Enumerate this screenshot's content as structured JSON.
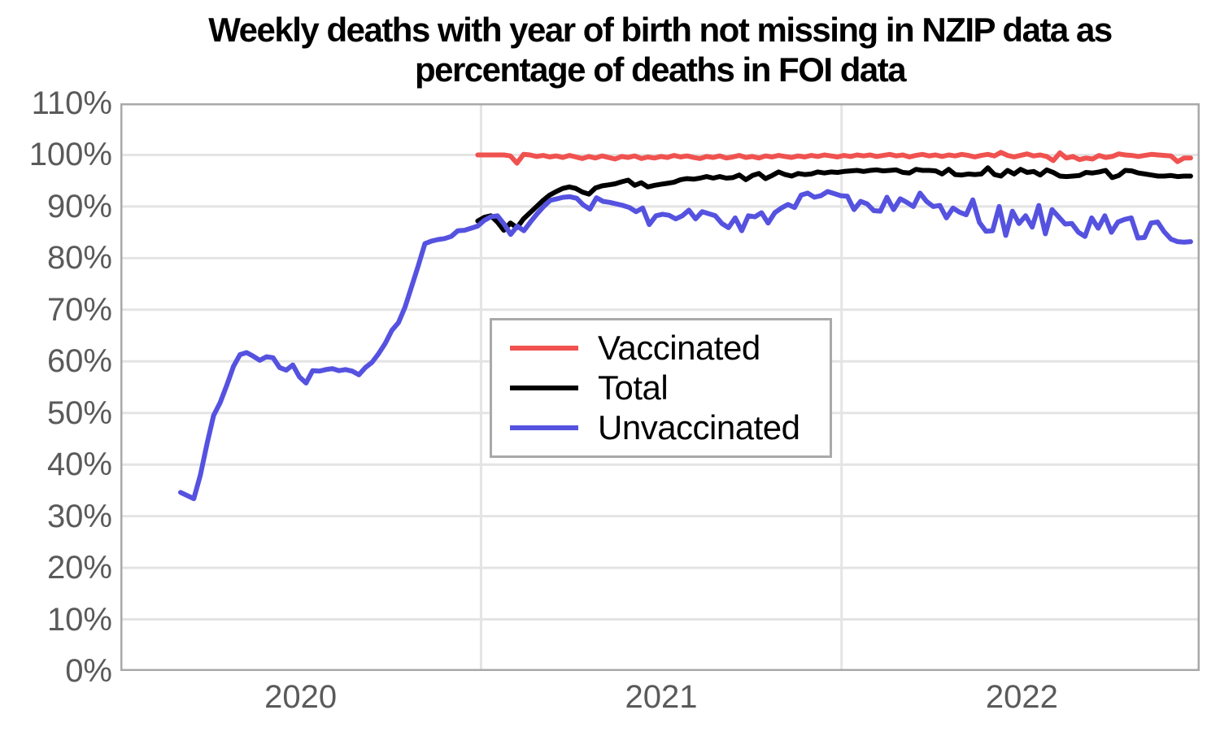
{
  "colors": {
    "background": "#ffffff",
    "grid": "#e4e4e4",
    "plot_border": "#a9a9a9",
    "axis_label": "#5a5a5a",
    "title": "#000000",
    "vaccinated_line": "#f0524f",
    "total_line": "#000000",
    "unvaccinated_line": "#5552e0"
  },
  "chart_data": {
    "type": "line",
    "title_lines": [
      "Weekly deaths with year of birth not missing in NZIP data as",
      "percentage of deaths in FOI data"
    ],
    "grid": true,
    "grid_color": "#e4e4e4",
    "border_color": "#a9a9a9",
    "x_axis": {
      "min": 2020,
      "max": 2022.993,
      "tick_labels": [
        {
          "value": 2020.5,
          "label": "2020"
        },
        {
          "value": 2021.5,
          "label": "2021"
        },
        {
          "value": 2022.5,
          "label": "2022"
        }
      ],
      "gridlines": [
        2021,
        2022
      ]
    },
    "y_axis": {
      "min": 0,
      "max": 110,
      "gridline_step": 10,
      "unit": "%",
      "tick_labels": [
        {
          "value": 0,
          "label": "0%"
        },
        {
          "value": 10,
          "label": "10%"
        },
        {
          "value": 20,
          "label": "20%"
        },
        {
          "value": 30,
          "label": "30%"
        },
        {
          "value": 40,
          "label": "40%"
        },
        {
          "value": 50,
          "label": "50%"
        },
        {
          "value": 60,
          "label": "60%"
        },
        {
          "value": 70,
          "label": "70%"
        },
        {
          "value": 80,
          "label": "80%"
        },
        {
          "value": 90,
          "label": "90%"
        },
        {
          "value": 100,
          "label": "100%"
        },
        {
          "value": 110,
          "label": "110%"
        }
      ]
    },
    "legend": {
      "position": "inside-left-center",
      "items": [
        "Vaccinated",
        "Total",
        "Unvaccinated"
      ]
    },
    "series": [
      {
        "name": "Vaccinated",
        "color": "#f0524f",
        "x_start": 2020.991,
        "x_end": 2022.968,
        "unit": "%",
        "values": [
          100.0,
          100.0,
          100.0,
          100.0,
          100.0,
          99.8,
          98.4,
          100.1,
          100.0,
          99.7,
          99.9,
          99.6,
          99.8,
          99.5,
          99.9,
          99.6,
          99.3,
          99.7,
          99.4,
          99.8,
          99.5,
          99.2,
          99.7,
          99.5,
          99.8,
          99.3,
          99.6,
          99.4,
          99.7,
          99.5,
          99.9,
          99.6,
          99.8,
          99.5,
          99.3,
          99.7,
          99.5,
          99.8,
          99.4,
          99.6,
          99.9,
          99.5,
          99.7,
          99.4,
          99.8,
          99.6,
          99.9,
          99.7,
          99.5,
          99.8,
          99.6,
          99.9,
          99.7,
          100.0,
          99.8,
          99.6,
          99.9,
          99.7,
          100.0,
          99.8,
          100.0,
          99.7,
          99.9,
          100.1,
          99.8,
          100.0,
          99.6,
          99.9,
          100.1,
          99.8,
          100.0,
          99.7,
          100.0,
          99.8,
          100.1,
          99.9,
          99.6,
          99.9,
          100.1,
          99.8,
          100.5,
          99.9,
          99.6,
          99.9,
          100.2,
          99.8,
          100.0,
          99.7,
          98.9,
          100.4,
          99.4,
          99.7,
          99.1,
          99.4,
          99.2,
          99.9,
          99.5,
          99.7,
          100.2,
          100.0,
          99.9,
          99.7,
          99.9,
          100.1,
          100.0,
          99.9,
          99.8,
          98.7,
          99.4,
          99.4
        ]
      },
      {
        "name": "Total",
        "color": "#000000",
        "x_start": 2020.991,
        "x_end": 2022.968,
        "unit": "%",
        "values": [
          87.2,
          87.9,
          88.2,
          87.0,
          85.4,
          86.8,
          85.9,
          87.6,
          88.8,
          90.0,
          91.2,
          92.2,
          92.9,
          93.5,
          93.8,
          93.5,
          92.8,
          92.4,
          93.6,
          94.0,
          94.2,
          94.4,
          94.8,
          95.1,
          94.1,
          94.6,
          93.8,
          94.1,
          94.3,
          94.5,
          94.7,
          95.2,
          95.4,
          95.3,
          95.5,
          95.8,
          95.5,
          95.8,
          95.5,
          95.6,
          96.1,
          95.2,
          96.0,
          96.4,
          95.4,
          96.0,
          96.7,
          96.2,
          95.9,
          96.4,
          96.2,
          96.3,
          96.7,
          96.5,
          96.7,
          96.6,
          96.8,
          96.9,
          97.0,
          96.8,
          97.0,
          97.1,
          96.9,
          97.0,
          97.1,
          96.6,
          96.5,
          97.2,
          97.0,
          97.0,
          96.9,
          96.3,
          97.2,
          96.2,
          96.1,
          96.3,
          96.2,
          96.3,
          97.5,
          96.2,
          95.9,
          97.0,
          96.3,
          97.2,
          96.6,
          96.8,
          96.1,
          97.1,
          96.6,
          95.9,
          95.8,
          95.9,
          96.0,
          96.6,
          96.5,
          96.7,
          97.0,
          95.6,
          96.0,
          97.0,
          96.9,
          96.5,
          96.3,
          96.1,
          95.9,
          95.9,
          96.0,
          95.8,
          95.9,
          95.9
        ]
      },
      {
        "name": "Unvaccinated",
        "color": "#5552e0",
        "x_start": 2020.167,
        "x_end": 2022.968,
        "unit": "%",
        "values": [
          34.6,
          34.0,
          33.4,
          38.0,
          44.0,
          49.5,
          52.0,
          55.4,
          59.0,
          61.3,
          61.7,
          61.0,
          60.2,
          60.9,
          60.7,
          58.8,
          58.3,
          59.3,
          57.0,
          55.8,
          58.2,
          58.1,
          58.4,
          58.6,
          58.2,
          58.4,
          58.1,
          57.4,
          58.8,
          59.8,
          61.5,
          63.5,
          66.0,
          67.5,
          70.5,
          74.5,
          78.5,
          82.8,
          83.3,
          83.6,
          83.8,
          84.2,
          85.3,
          85.4,
          85.8,
          86.2,
          87.3,
          88.0,
          88.2,
          86.6,
          84.6,
          86.2,
          85.3,
          87.0,
          88.6,
          90.0,
          91.2,
          91.5,
          91.8,
          91.9,
          91.6,
          90.3,
          89.5,
          91.7,
          91.0,
          90.8,
          90.5,
          90.2,
          89.8,
          89.0,
          89.7,
          86.5,
          88.2,
          88.5,
          88.3,
          87.6,
          88.2,
          89.3,
          87.6,
          89.0,
          88.6,
          88.2,
          86.7,
          85.9,
          87.8,
          85.3,
          88.2,
          88.0,
          88.8,
          86.8,
          88.8,
          89.7,
          90.4,
          89.8,
          92.2,
          92.6,
          91.8,
          92.1,
          92.9,
          92.5,
          92.1,
          92.0,
          89.4,
          91.0,
          90.5,
          89.2,
          89.1,
          91.8,
          89.4,
          91.5,
          90.8,
          90.0,
          92.6,
          91.0,
          90.0,
          90.2,
          87.8,
          89.7,
          88.9,
          88.4,
          91.3,
          86.9,
          85.2,
          85.3,
          90.0,
          84.4,
          89.1,
          86.7,
          88.2,
          86.0,
          90.2,
          84.7,
          89.4,
          88.0,
          86.6,
          86.7,
          85.0,
          84.2,
          87.8,
          85.8,
          88.2,
          85.0,
          87.0,
          87.5,
          87.8,
          83.9,
          84.0,
          86.8,
          87.0,
          85.1,
          83.7,
          83.2,
          83.1,
          83.2
        ]
      }
    ]
  }
}
